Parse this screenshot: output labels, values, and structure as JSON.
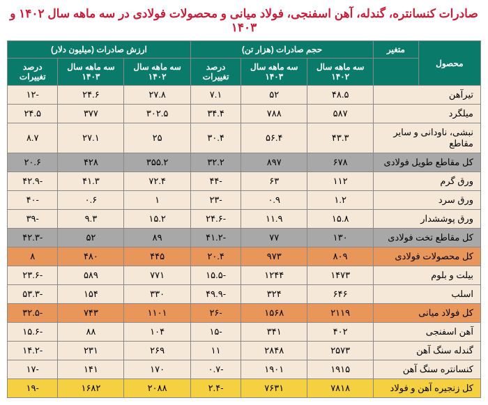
{
  "title": "صادرات کنسانتره، گندله، آهن اسفنجی، فولاد میانی و محصولات فولادی در سه ماهه سال ۱۴۰۲ و ۱۴۰۳",
  "header": {
    "variable": "متغیر",
    "product": "محصول",
    "volume": "حجم صادرات (هزار تن)",
    "value": "ارزش صادرات (میلیون دلار)",
    "q1402": "سه ماهه سال ۱۴۰۲",
    "q1403": "سه ماهه سال ۱۴۰۳",
    "change": "درصد تغییرات"
  },
  "rows": [
    {
      "cls": "row-normal",
      "product": "تیرآهن",
      "v1402": "۴۸.۵",
      "v1403": "۵۲",
      "vch": "۷.۱",
      "val1402": "۲۷.۸",
      "val1403": "۲۴.۶",
      "valch": "-۱۲"
    },
    {
      "cls": "row-normal",
      "product": "میلگرد",
      "v1402": "۵۸۷",
      "v1403": "۷۸۸",
      "vch": "۳۴.۴",
      "val1402": "۳۰۲.۵",
      "val1403": "۳۷۷",
      "valch": "۲۴.۵"
    },
    {
      "cls": "row-normal",
      "product": "نبشی، ناودانی و سایر مقاطع",
      "v1402": "۴۳.۳",
      "v1403": "۵۶.۴",
      "vch": "۳۰.۴",
      "val1402": "۲۵",
      "val1403": "۲۷.۱",
      "valch": "۸.۷"
    },
    {
      "cls": "row-gray",
      "product": "کل مقاطع طویل فولادی",
      "v1402": "۶۷۸",
      "v1403": "۸۹۷",
      "vch": "۳۲.۲",
      "val1402": "۳۵۵.۲",
      "val1403": "۴۲۸",
      "valch": "۲۰.۶"
    },
    {
      "cls": "row-normal",
      "product": "ورق گرم",
      "v1402": "۱۱۲",
      "v1403": "۶۳",
      "vch": "-۴۴",
      "val1402": "۷۲.۴",
      "val1403": "۴۱.۳",
      "valch": "-۴۲.۹"
    },
    {
      "cls": "row-normal",
      "product": "ورق سرد",
      "v1402": "۱.۲",
      "v1403": "۰.۹",
      "vch": "-۲۳",
      "val1402": "۱",
      "val1403": "۰.۶",
      "valch": "-۴۰"
    },
    {
      "cls": "row-normal",
      "product": "ورق پوششدار",
      "v1402": "۱۵.۸",
      "v1403": "۱۱.۹",
      "vch": "-۲۴.۶",
      "val1402": "۱۵.۲",
      "val1403": "۹.۳",
      "valch": "-۳۹"
    },
    {
      "cls": "row-gray",
      "product": "کل مقاطع تخت فولادی",
      "v1402": "۱۳۰",
      "v1403": "۷۷",
      "vch": "-۴۱.۲",
      "val1402": "۸۹",
      "val1403": "۵۲",
      "valch": "-۴۲.۳"
    },
    {
      "cls": "row-orange",
      "product": "کل محصولات فولادی",
      "v1402": "۸۰۹",
      "v1403": "۹۷۳",
      "vch": "۲۰.۴",
      "val1402": "۴۴۵",
      "val1403": "۴۸۰",
      "valch": "۸"
    },
    {
      "cls": "row-normal",
      "product": "بیلت و بلوم",
      "v1402": "۱۴۷۳",
      "v1403": "۱۲۴۴",
      "vch": "-۱۵.۵",
      "val1402": "۷۷۱",
      "val1403": "۵۸۹",
      "valch": "-۲۳.۶"
    },
    {
      "cls": "row-normal",
      "product": "اسلب",
      "v1402": "۶۴۶",
      "v1403": "۳۲۴",
      "vch": "-۴۹.۹",
      "val1402": "۳۳۰",
      "val1403": "۱۵۴",
      "valch": "-۵۳.۳"
    },
    {
      "cls": "row-orange",
      "product": "کل فولاد میانی",
      "v1402": "۲۱۱۹",
      "v1403": "۱۵۶۸",
      "vch": "-۲۶",
      "val1402": "۱۱۰۱",
      "val1403": "۷۴۳",
      "valch": "-۳۲.۵"
    },
    {
      "cls": "row-normal",
      "product": "آهن اسفنجی",
      "v1402": "۴۰۲",
      "v1403": "۳۴۱",
      "vch": "-۱۵",
      "val1402": "۱۰۴",
      "val1403": "۸۸",
      "valch": "-۱۵.۶"
    },
    {
      "cls": "row-normal",
      "product": "گندله سنگ آهن",
      "v1402": "۲۵۷۳",
      "v1403": "۲۸۴۸",
      "vch": "۱۱",
      "val1402": "۲۶۹",
      "val1403": "۲۳۱",
      "valch": "-۱۴.۲"
    },
    {
      "cls": "row-normal",
      "product": "کنسانتره سنگ آهن",
      "v1402": "۱۹۱۵",
      "v1403": "۱۹۰۱",
      "vch": "-۰.۷",
      "val1402": "۱۷۰",
      "val1403": "۱۴۱",
      "valch": "-۱۷"
    },
    {
      "cls": "row-yellow",
      "product": "کل زنجیره آهن و فولاد",
      "v1402": "۷۸۱۸",
      "v1403": "۷۶۳۱",
      "vch": "-۲.۴",
      "val1402": "۲۰۸۸",
      "val1403": "۱۶۸۲",
      "valch": "-۱۹"
    }
  ]
}
